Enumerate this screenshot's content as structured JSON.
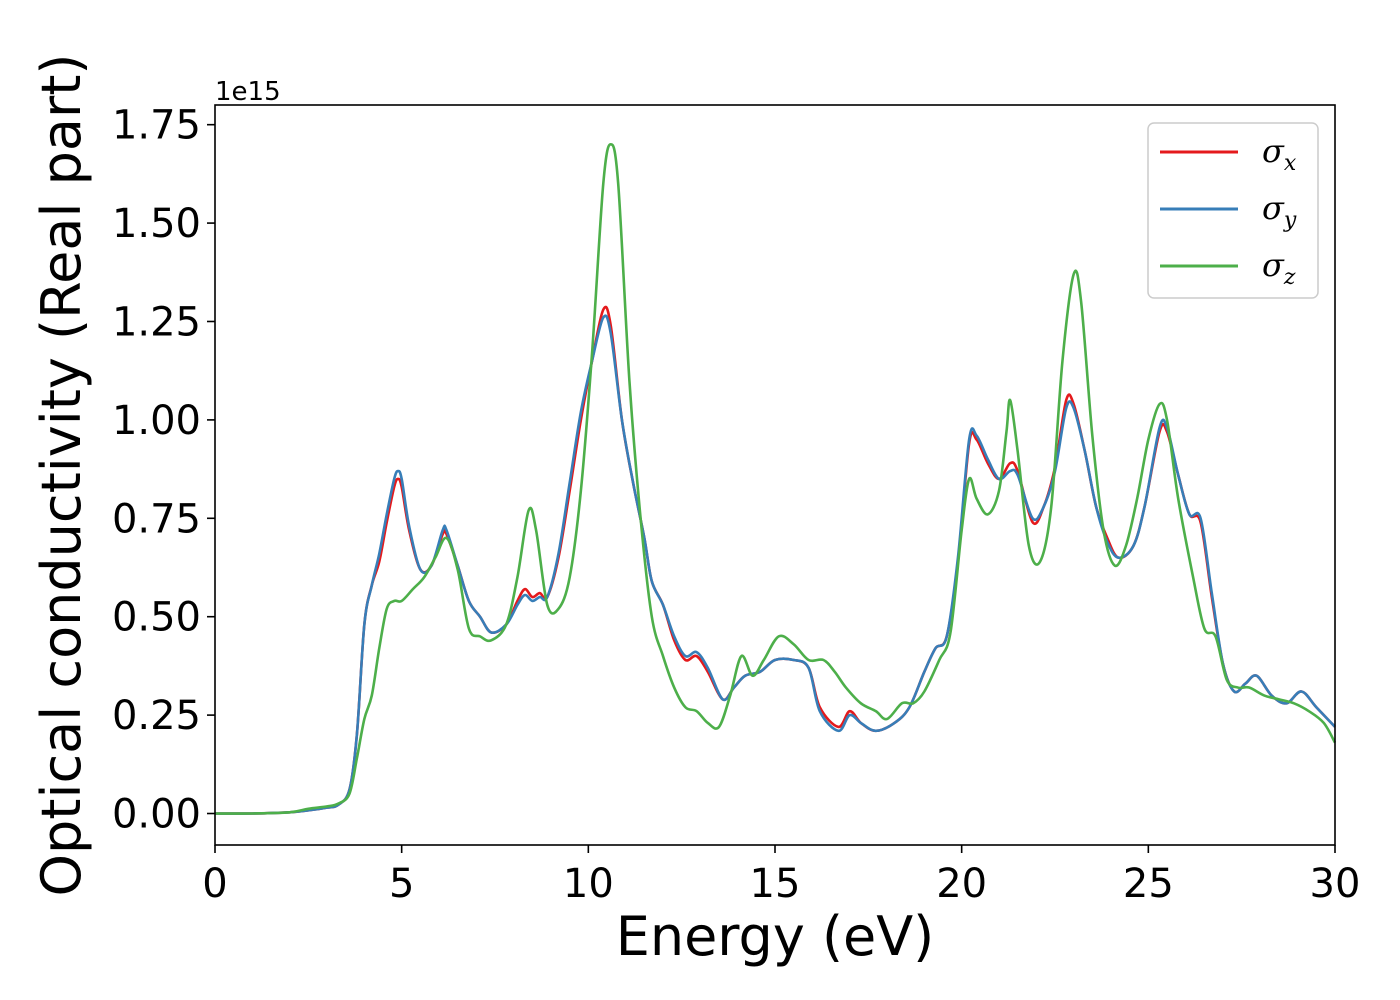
{
  "chart_data": {
    "type": "line",
    "title": "",
    "xlabel": "Energy (eV)",
    "ylabel": "Optical conductivity (Real part)",
    "y_offset_label": "1e15",
    "xlim": [
      0,
      30
    ],
    "ylim": [
      -0.08,
      1.8
    ],
    "x_ticks": [
      0,
      5,
      10,
      15,
      20,
      25,
      30
    ],
    "x_tick_labels": [
      "0",
      "5",
      "10",
      "15",
      "20",
      "25",
      "30"
    ],
    "y_ticks": [
      0.0,
      0.25,
      0.5,
      0.75,
      1.0,
      1.25,
      1.5,
      1.75
    ],
    "y_tick_labels": [
      "0.00",
      "0.25",
      "0.50",
      "0.75",
      "1.00",
      "1.25",
      "1.50",
      "1.75"
    ],
    "grid": false,
    "legend_position": "top-right",
    "series": [
      {
        "name": "σx",
        "label_base": "σ",
        "label_sub": "x",
        "color": "#e41a1c",
        "points": [
          [
            0,
            0
          ],
          [
            1,
            0
          ],
          [
            2,
            0.003
          ],
          [
            2.5,
            0.008
          ],
          [
            3,
            0.015
          ],
          [
            3.3,
            0.022
          ],
          [
            3.6,
            0.06
          ],
          [
            3.8,
            0.2
          ],
          [
            4,
            0.48
          ],
          [
            4.2,
            0.58
          ],
          [
            4.4,
            0.64
          ],
          [
            4.6,
            0.74
          ],
          [
            4.8,
            0.83
          ],
          [
            4.9,
            0.85
          ],
          [
            5,
            0.83
          ],
          [
            5.2,
            0.72
          ],
          [
            5.5,
            0.62
          ],
          [
            5.8,
            0.63
          ],
          [
            6.1,
            0.71
          ],
          [
            6.2,
            0.71
          ],
          [
            6.5,
            0.63
          ],
          [
            6.8,
            0.54
          ],
          [
            7.1,
            0.5
          ],
          [
            7.4,
            0.46
          ],
          [
            7.8,
            0.48
          ],
          [
            8.1,
            0.54
          ],
          [
            8.3,
            0.57
          ],
          [
            8.5,
            0.55
          ],
          [
            8.7,
            0.56
          ],
          [
            8.9,
            0.55
          ],
          [
            9.2,
            0.65
          ],
          [
            9.5,
            0.82
          ],
          [
            9.8,
            1.0
          ],
          [
            10.1,
            1.15
          ],
          [
            10.4,
            1.28
          ],
          [
            10.6,
            1.24
          ],
          [
            10.9,
            1.0
          ],
          [
            11.2,
            0.84
          ],
          [
            11.5,
            0.7
          ],
          [
            11.7,
            0.59
          ],
          [
            12,
            0.53
          ],
          [
            12.3,
            0.44
          ],
          [
            12.6,
            0.39
          ],
          [
            12.9,
            0.4
          ],
          [
            13.2,
            0.36
          ],
          [
            13.6,
            0.29
          ],
          [
            13.9,
            0.32
          ],
          [
            14.2,
            0.35
          ],
          [
            14.6,
            0.36
          ],
          [
            15,
            0.39
          ],
          [
            15.5,
            0.39
          ],
          [
            15.9,
            0.37
          ],
          [
            16.2,
            0.27
          ],
          [
            16.7,
            0.22
          ],
          [
            17,
            0.26
          ],
          [
            17.3,
            0.23
          ],
          [
            17.7,
            0.21
          ],
          [
            18.2,
            0.23
          ],
          [
            18.6,
            0.27
          ],
          [
            19,
            0.36
          ],
          [
            19.3,
            0.42
          ],
          [
            19.6,
            0.45
          ],
          [
            19.9,
            0.64
          ],
          [
            20.2,
            0.94
          ],
          [
            20.4,
            0.95
          ],
          [
            20.7,
            0.89
          ],
          [
            21,
            0.85
          ],
          [
            21.3,
            0.89
          ],
          [
            21.5,
            0.87
          ],
          [
            21.9,
            0.74
          ],
          [
            22.2,
            0.78
          ],
          [
            22.5,
            0.88
          ],
          [
            22.8,
            1.05
          ],
          [
            23,
            1.04
          ],
          [
            23.3,
            0.92
          ],
          [
            23.6,
            0.78
          ],
          [
            23.9,
            0.7
          ],
          [
            24.2,
            0.65
          ],
          [
            24.6,
            0.68
          ],
          [
            24.9,
            0.78
          ],
          [
            25.3,
            0.97
          ],
          [
            25.5,
            0.97
          ],
          [
            25.8,
            0.86
          ],
          [
            26.1,
            0.76
          ],
          [
            26.4,
            0.74
          ],
          [
            26.7,
            0.55
          ],
          [
            27,
            0.38
          ],
          [
            27.3,
            0.31
          ],
          [
            27.6,
            0.33
          ],
          [
            27.9,
            0.35
          ],
          [
            28.3,
            0.3
          ],
          [
            28.7,
            0.28
          ],
          [
            29.1,
            0.31
          ],
          [
            29.5,
            0.27
          ],
          [
            30,
            0.22
          ]
        ]
      },
      {
        "name": "σy",
        "label_base": "σ",
        "label_sub": "y",
        "color": "#377eb8",
        "points": [
          [
            0,
            0
          ],
          [
            1,
            0
          ],
          [
            2,
            0.003
          ],
          [
            2.5,
            0.008
          ],
          [
            3,
            0.015
          ],
          [
            3.3,
            0.022
          ],
          [
            3.6,
            0.06
          ],
          [
            3.8,
            0.2
          ],
          [
            4,
            0.48
          ],
          [
            4.2,
            0.58
          ],
          [
            4.4,
            0.66
          ],
          [
            4.6,
            0.76
          ],
          [
            4.8,
            0.85
          ],
          [
            4.9,
            0.87
          ],
          [
            5,
            0.85
          ],
          [
            5.2,
            0.73
          ],
          [
            5.5,
            0.62
          ],
          [
            5.8,
            0.63
          ],
          [
            6.1,
            0.72
          ],
          [
            6.2,
            0.72
          ],
          [
            6.5,
            0.63
          ],
          [
            6.8,
            0.54
          ],
          [
            7.1,
            0.5
          ],
          [
            7.4,
            0.46
          ],
          [
            7.8,
            0.48
          ],
          [
            8.1,
            0.53
          ],
          [
            8.3,
            0.555
          ],
          [
            8.5,
            0.54
          ],
          [
            8.7,
            0.55
          ],
          [
            8.9,
            0.55
          ],
          [
            9.2,
            0.66
          ],
          [
            9.5,
            0.84
          ],
          [
            9.8,
            1.02
          ],
          [
            10.1,
            1.15
          ],
          [
            10.4,
            1.26
          ],
          [
            10.6,
            1.22
          ],
          [
            10.9,
            1.0
          ],
          [
            11.2,
            0.84
          ],
          [
            11.5,
            0.7
          ],
          [
            11.7,
            0.59
          ],
          [
            12,
            0.53
          ],
          [
            12.3,
            0.45
          ],
          [
            12.6,
            0.4
          ],
          [
            12.9,
            0.41
          ],
          [
            13.2,
            0.37
          ],
          [
            13.6,
            0.29
          ],
          [
            13.9,
            0.32
          ],
          [
            14.2,
            0.35
          ],
          [
            14.6,
            0.36
          ],
          [
            15,
            0.39
          ],
          [
            15.5,
            0.39
          ],
          [
            15.9,
            0.37
          ],
          [
            16.2,
            0.26
          ],
          [
            16.7,
            0.21
          ],
          [
            17,
            0.25
          ],
          [
            17.3,
            0.23
          ],
          [
            17.7,
            0.21
          ],
          [
            18.2,
            0.23
          ],
          [
            18.6,
            0.27
          ],
          [
            19,
            0.36
          ],
          [
            19.3,
            0.42
          ],
          [
            19.6,
            0.45
          ],
          [
            19.9,
            0.65
          ],
          [
            20.2,
            0.95
          ],
          [
            20.4,
            0.96
          ],
          [
            20.7,
            0.9
          ],
          [
            21,
            0.85
          ],
          [
            21.3,
            0.87
          ],
          [
            21.5,
            0.86
          ],
          [
            21.9,
            0.75
          ],
          [
            22.2,
            0.78
          ],
          [
            22.5,
            0.87
          ],
          [
            22.8,
            1.03
          ],
          [
            23,
            1.03
          ],
          [
            23.3,
            0.92
          ],
          [
            23.6,
            0.78
          ],
          [
            23.9,
            0.69
          ],
          [
            24.2,
            0.65
          ],
          [
            24.6,
            0.68
          ],
          [
            24.9,
            0.78
          ],
          [
            25.3,
            0.98
          ],
          [
            25.5,
            0.98
          ],
          [
            25.8,
            0.86
          ],
          [
            26.1,
            0.76
          ],
          [
            26.4,
            0.75
          ],
          [
            26.7,
            0.56
          ],
          [
            27,
            0.38
          ],
          [
            27.3,
            0.31
          ],
          [
            27.6,
            0.33
          ],
          [
            27.9,
            0.35
          ],
          [
            28.3,
            0.3
          ],
          [
            28.7,
            0.28
          ],
          [
            29.1,
            0.31
          ],
          [
            29.5,
            0.27
          ],
          [
            30,
            0.22
          ]
        ]
      },
      {
        "name": "σz",
        "label_base": "σ",
        "label_sub": "z",
        "color": "#4daf4a",
        "points": [
          [
            0,
            0
          ],
          [
            1,
            0
          ],
          [
            2,
            0.003
          ],
          [
            2.5,
            0.012
          ],
          [
            3,
            0.018
          ],
          [
            3.3,
            0.025
          ],
          [
            3.6,
            0.05
          ],
          [
            3.8,
            0.14
          ],
          [
            4,
            0.24
          ],
          [
            4.2,
            0.3
          ],
          [
            4.4,
            0.42
          ],
          [
            4.6,
            0.52
          ],
          [
            4.8,
            0.54
          ],
          [
            5,
            0.54
          ],
          [
            5.3,
            0.57
          ],
          [
            5.6,
            0.6
          ],
          [
            5.9,
            0.65
          ],
          [
            6.2,
            0.7
          ],
          [
            6.5,
            0.62
          ],
          [
            6.8,
            0.47
          ],
          [
            7.1,
            0.45
          ],
          [
            7.4,
            0.44
          ],
          [
            7.8,
            0.48
          ],
          [
            8.1,
            0.6
          ],
          [
            8.4,
            0.77
          ],
          [
            8.6,
            0.72
          ],
          [
            8.9,
            0.53
          ],
          [
            9.2,
            0.52
          ],
          [
            9.5,
            0.6
          ],
          [
            9.8,
            0.82
          ],
          [
            10.1,
            1.17
          ],
          [
            10.4,
            1.6
          ],
          [
            10.6,
            1.7
          ],
          [
            10.8,
            1.6
          ],
          [
            11.1,
            1.1
          ],
          [
            11.4,
            0.75
          ],
          [
            11.7,
            0.5
          ],
          [
            12,
            0.4
          ],
          [
            12.3,
            0.32
          ],
          [
            12.6,
            0.27
          ],
          [
            12.9,
            0.26
          ],
          [
            13.2,
            0.23
          ],
          [
            13.5,
            0.22
          ],
          [
            13.8,
            0.3
          ],
          [
            14.1,
            0.4
          ],
          [
            14.4,
            0.35
          ],
          [
            14.7,
            0.39
          ],
          [
            15.1,
            0.45
          ],
          [
            15.5,
            0.43
          ],
          [
            15.9,
            0.39
          ],
          [
            16.3,
            0.39
          ],
          [
            16.6,
            0.36
          ],
          [
            16.9,
            0.32
          ],
          [
            17.3,
            0.28
          ],
          [
            17.7,
            0.26
          ],
          [
            18,
            0.24
          ],
          [
            18.4,
            0.28
          ],
          [
            18.7,
            0.28
          ],
          [
            19,
            0.31
          ],
          [
            19.4,
            0.39
          ],
          [
            19.7,
            0.46
          ],
          [
            20,
            0.72
          ],
          [
            20.2,
            0.85
          ],
          [
            20.4,
            0.8
          ],
          [
            20.7,
            0.76
          ],
          [
            21,
            0.82
          ],
          [
            21.2,
            0.97
          ],
          [
            21.3,
            1.05
          ],
          [
            21.5,
            0.92
          ],
          [
            21.8,
            0.68
          ],
          [
            22.1,
            0.64
          ],
          [
            22.4,
            0.78
          ],
          [
            22.7,
            1.15
          ],
          [
            23,
            1.37
          ],
          [
            23.2,
            1.3
          ],
          [
            23.5,
            0.96
          ],
          [
            23.8,
            0.72
          ],
          [
            24.1,
            0.63
          ],
          [
            24.4,
            0.68
          ],
          [
            24.7,
            0.8
          ],
          [
            25,
            0.95
          ],
          [
            25.3,
            1.04
          ],
          [
            25.5,
            1.0
          ],
          [
            25.8,
            0.8
          ],
          [
            26.2,
            0.6
          ],
          [
            26.5,
            0.47
          ],
          [
            26.8,
            0.45
          ],
          [
            27.1,
            0.34
          ],
          [
            27.4,
            0.32
          ],
          [
            27.7,
            0.32
          ],
          [
            28.1,
            0.3
          ],
          [
            28.5,
            0.29
          ],
          [
            28.9,
            0.28
          ],
          [
            29.3,
            0.26
          ],
          [
            29.7,
            0.23
          ],
          [
            30,
            0.18
          ]
        ]
      }
    ]
  }
}
